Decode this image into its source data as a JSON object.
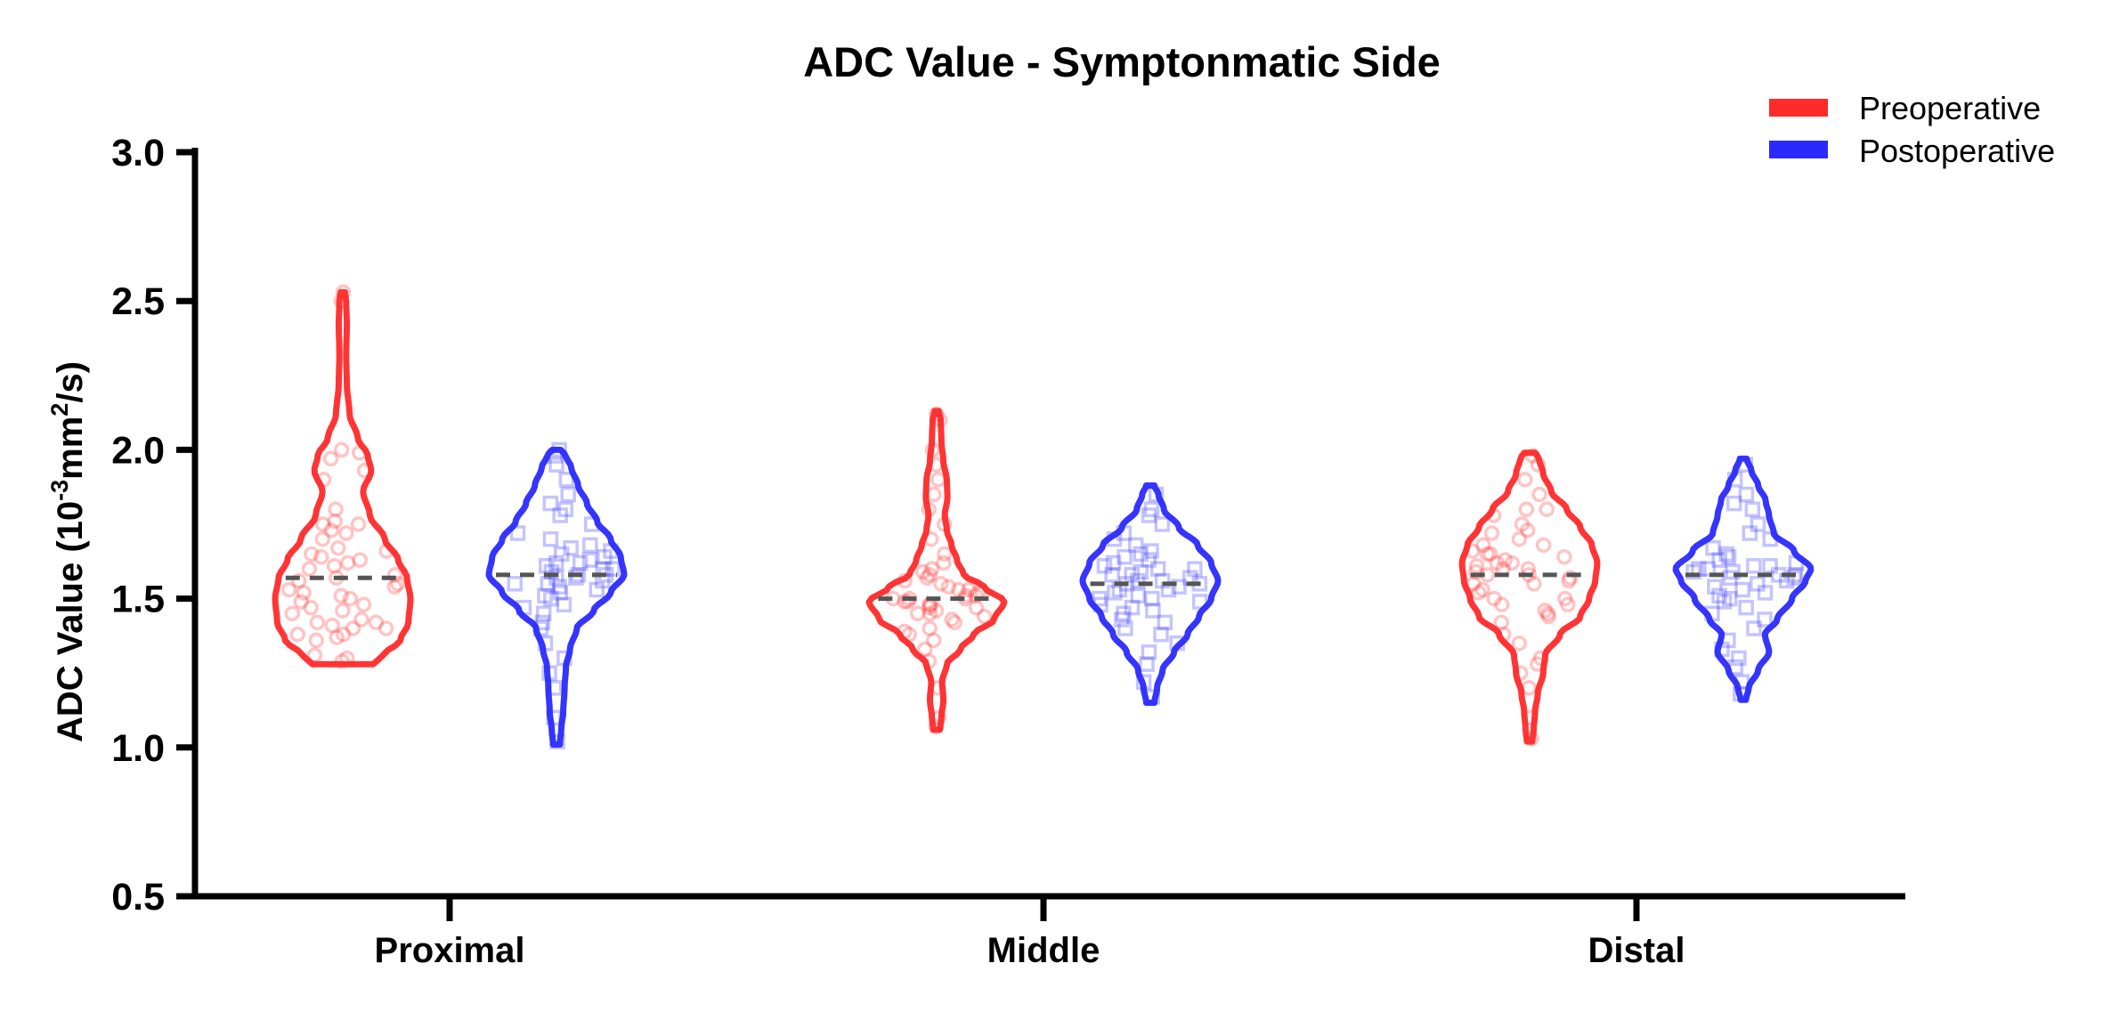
{
  "chart_data": {
    "type": "violin",
    "title": "ADC Value - Symptonmatic Side",
    "ylabel_prefix": "ADC Value (10",
    "ylabel_sup1": "-3",
    "ylabel_mid": "mm",
    "ylabel_sup2": "2",
    "ylabel_suffix": "/s)",
    "xlabel": "",
    "ylim": [
      0.5,
      3.0
    ],
    "yticks": [
      "0.5",
      "1.0",
      "1.5",
      "2.0",
      "2.5",
      "3.0"
    ],
    "categories": [
      "Proximal",
      "Middle",
      "Distal"
    ],
    "legend_position": "top-right",
    "series": [
      {
        "name": "Preoperative",
        "color": "#ff2a2a",
        "marker": "circle",
        "groups": [
          {
            "category": "Proximal",
            "median": 1.57,
            "range": [
              1.28,
              2.53
            ],
            "profile": [
              [
                1.28,
                0.45
              ],
              [
                1.31,
                0.6
              ],
              [
                1.36,
                0.85
              ],
              [
                1.42,
                0.97
              ],
              [
                1.5,
                1.0
              ],
              [
                1.57,
                0.95
              ],
              [
                1.63,
                0.82
              ],
              [
                1.7,
                0.62
              ],
              [
                1.78,
                0.4
              ],
              [
                1.86,
                0.3
              ],
              [
                1.93,
                0.42
              ],
              [
                1.98,
                0.37
              ],
              [
                2.04,
                0.22
              ],
              [
                2.12,
                0.1
              ],
              [
                2.22,
                0.06
              ],
              [
                2.32,
                0.05
              ],
              [
                2.42,
                0.06
              ],
              [
                2.5,
                0.05
              ],
              [
                2.53,
                0.03
              ]
            ],
            "points": [
              1.29,
              1.3,
              1.31,
              1.36,
              1.37,
              1.38,
              1.38,
              1.4,
              1.4,
              1.41,
              1.42,
              1.42,
              1.43,
              1.45,
              1.46,
              1.47,
              1.48,
              1.49,
              1.5,
              1.51,
              1.52,
              1.53,
              1.54,
              1.55,
              1.56,
              1.57,
              1.58,
              1.6,
              1.61,
              1.62,
              1.63,
              1.64,
              1.65,
              1.66,
              1.67,
              1.7,
              1.72,
              1.73,
              1.75,
              1.75,
              1.76,
              1.8,
              1.9,
              1.93,
              1.97,
              1.99,
              2.0,
              2.5,
              2.53
            ]
          },
          {
            "category": "Middle",
            "median": 1.5,
            "range": [
              1.06,
              2.13
            ],
            "profile": [
              [
                1.06,
                0.05
              ],
              [
                1.1,
                0.07
              ],
              [
                1.16,
                0.1
              ],
              [
                1.22,
                0.08
              ],
              [
                1.28,
                0.15
              ],
              [
                1.33,
                0.35
              ],
              [
                1.38,
                0.55
              ],
              [
                1.43,
                0.85
              ],
              [
                1.49,
                1.0
              ],
              [
                1.54,
                0.7
              ],
              [
                1.58,
                0.4
              ],
              [
                1.63,
                0.3
              ],
              [
                1.68,
                0.22
              ],
              [
                1.73,
                0.15
              ],
              [
                1.78,
                0.12
              ],
              [
                1.84,
                0.16
              ],
              [
                1.9,
                0.15
              ],
              [
                1.96,
                0.1
              ],
              [
                2.03,
                0.07
              ],
              [
                2.1,
                0.06
              ],
              [
                2.13,
                0.03
              ]
            ],
            "points": [
              1.07,
              1.1,
              1.2,
              1.29,
              1.33,
              1.36,
              1.38,
              1.39,
              1.4,
              1.42,
              1.43,
              1.44,
              1.45,
              1.45,
              1.46,
              1.47,
              1.47,
              1.48,
              1.48,
              1.49,
              1.49,
              1.5,
              1.5,
              1.5,
              1.51,
              1.51,
              1.52,
              1.52,
              1.53,
              1.53,
              1.54,
              1.55,
              1.56,
              1.57,
              1.58,
              1.59,
              1.6,
              1.62,
              1.65,
              1.7,
              1.75,
              1.8,
              1.85,
              1.9,
              1.95,
              2.0,
              2.1,
              2.12
            ]
          },
          {
            "category": "Distal",
            "median": 1.58,
            "range": [
              1.02,
              1.99
            ],
            "profile": [
              [
                1.02,
                0.04
              ],
              [
                1.06,
                0.06
              ],
              [
                1.12,
                0.08
              ],
              [
                1.18,
                0.12
              ],
              [
                1.25,
                0.2
              ],
              [
                1.31,
                0.23
              ],
              [
                1.38,
                0.45
              ],
              [
                1.44,
                0.75
              ],
              [
                1.5,
                0.88
              ],
              [
                1.56,
                0.97
              ],
              [
                1.62,
                1.0
              ],
              [
                1.68,
                0.92
              ],
              [
                1.74,
                0.75
              ],
              [
                1.8,
                0.55
              ],
              [
                1.86,
                0.32
              ],
              [
                1.92,
                0.2
              ],
              [
                1.97,
                0.14
              ],
              [
                1.99,
                0.08
              ]
            ],
            "points": [
              1.03,
              1.1,
              1.2,
              1.25,
              1.28,
              1.3,
              1.35,
              1.38,
              1.42,
              1.44,
              1.45,
              1.46,
              1.48,
              1.48,
              1.5,
              1.5,
              1.52,
              1.53,
              1.55,
              1.55,
              1.56,
              1.57,
              1.58,
              1.58,
              1.59,
              1.6,
              1.6,
              1.61,
              1.62,
              1.62,
              1.63,
              1.64,
              1.65,
              1.65,
              1.66,
              1.68,
              1.68,
              1.7,
              1.72,
              1.73,
              1.75,
              1.78,
              1.8,
              1.8,
              1.85,
              1.9,
              1.95,
              1.98
            ]
          }
        ]
      },
      {
        "name": "Postoperative",
        "color": "#2a2aff",
        "marker": "square",
        "groups": [
          {
            "category": "Proximal",
            "median": 1.58,
            "range": [
              1.01,
              2.0
            ],
            "profile": [
              [
                1.01,
                0.05
              ],
              [
                1.06,
                0.07
              ],
              [
                1.12,
                0.1
              ],
              [
                1.2,
                0.12
              ],
              [
                1.27,
                0.14
              ],
              [
                1.33,
                0.2
              ],
              [
                1.4,
                0.3
              ],
              [
                1.46,
                0.55
              ],
              [
                1.52,
                0.8
              ],
              [
                1.58,
                1.0
              ],
              [
                1.64,
                0.95
              ],
              [
                1.7,
                0.8
              ],
              [
                1.76,
                0.6
              ],
              [
                1.82,
                0.45
              ],
              [
                1.88,
                0.32
              ],
              [
                1.94,
                0.22
              ],
              [
                1.98,
                0.14
              ],
              [
                2.0,
                0.06
              ]
            ],
            "points": [
              1.02,
              1.1,
              1.2,
              1.25,
              1.3,
              1.35,
              1.4,
              1.42,
              1.45,
              1.47,
              1.48,
              1.5,
              1.51,
              1.52,
              1.53,
              1.54,
              1.55,
              1.55,
              1.56,
              1.57,
              1.57,
              1.58,
              1.58,
              1.59,
              1.6,
              1.6,
              1.61,
              1.62,
              1.62,
              1.63,
              1.64,
              1.65,
              1.66,
              1.67,
              1.68,
              1.7,
              1.72,
              1.75,
              1.78,
              1.8,
              1.82,
              1.85,
              1.9,
              1.95,
              1.98,
              2.0
            ]
          },
          {
            "category": "Middle",
            "median": 1.55,
            "range": [
              1.15,
              1.88
            ],
            "profile": [
              [
                1.15,
                0.06
              ],
              [
                1.2,
                0.1
              ],
              [
                1.26,
                0.18
              ],
              [
                1.32,
                0.35
              ],
              [
                1.38,
                0.55
              ],
              [
                1.44,
                0.72
              ],
              [
                1.5,
                0.9
              ],
              [
                1.56,
                1.0
              ],
              [
                1.62,
                0.9
              ],
              [
                1.68,
                0.7
              ],
              [
                1.74,
                0.42
              ],
              [
                1.8,
                0.2
              ],
              [
                1.85,
                0.12
              ],
              [
                1.88,
                0.06
              ]
            ],
            "points": [
              1.17,
              1.22,
              1.28,
              1.32,
              1.35,
              1.38,
              1.4,
              1.42,
              1.43,
              1.45,
              1.46,
              1.47,
              1.48,
              1.49,
              1.5,
              1.5,
              1.51,
              1.52,
              1.53,
              1.53,
              1.54,
              1.55,
              1.55,
              1.56,
              1.56,
              1.57,
              1.58,
              1.58,
              1.59,
              1.6,
              1.6,
              1.61,
              1.62,
              1.63,
              1.64,
              1.65,
              1.66,
              1.68,
              1.7,
              1.72,
              1.75,
              1.78,
              1.8,
              1.85
            ]
          },
          {
            "category": "Distal",
            "median": 1.58,
            "range": [
              1.16,
              1.97
            ],
            "profile": [
              [
                1.16,
                0.04
              ],
              [
                1.2,
                0.08
              ],
              [
                1.26,
                0.22
              ],
              [
                1.32,
                0.38
              ],
              [
                1.38,
                0.32
              ],
              [
                1.43,
                0.5
              ],
              [
                1.5,
                0.72
              ],
              [
                1.56,
                0.92
              ],
              [
                1.6,
                1.0
              ],
              [
                1.66,
                0.75
              ],
              [
                1.72,
                0.45
              ],
              [
                1.78,
                0.38
              ],
              [
                1.83,
                0.33
              ],
              [
                1.88,
                0.22
              ],
              [
                1.93,
                0.12
              ],
              [
                1.97,
                0.05
              ]
            ],
            "points": [
              1.18,
              1.22,
              1.27,
              1.3,
              1.33,
              1.36,
              1.4,
              1.43,
              1.45,
              1.47,
              1.49,
              1.5,
              1.51,
              1.52,
              1.53,
              1.54,
              1.55,
              1.56,
              1.57,
              1.57,
              1.58,
              1.58,
              1.59,
              1.59,
              1.6,
              1.6,
              1.61,
              1.61,
              1.62,
              1.63,
              1.64,
              1.65,
              1.67,
              1.7,
              1.72,
              1.75,
              1.8,
              1.82,
              1.85,
              1.9,
              1.95
            ]
          }
        ]
      }
    ]
  }
}
